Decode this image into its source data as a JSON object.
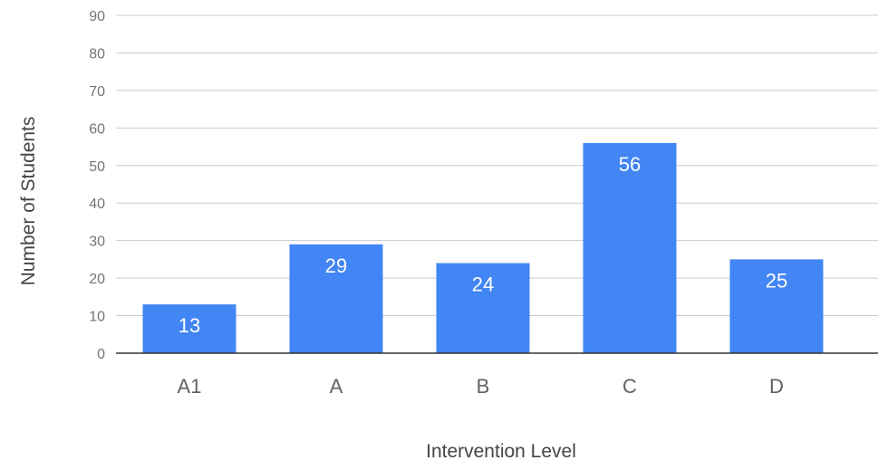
{
  "chart_data": {
    "type": "bar",
    "categories": [
      "A1",
      "A",
      "B",
      "C",
      "D"
    ],
    "values": [
      13,
      29,
      24,
      56,
      25
    ],
    "data_labels": [
      "13",
      "29",
      "24",
      "56",
      "25"
    ],
    "title": "",
    "xlabel": "Intervention Level",
    "ylabel": "Number of Students",
    "ylim": [
      0,
      90
    ],
    "yticks": [
      0,
      10,
      20,
      30,
      40,
      50,
      60,
      70,
      80,
      90
    ],
    "ytick_labels": [
      "0",
      "10",
      "20",
      "30",
      "40",
      "50",
      "60",
      "70",
      "80",
      "90"
    ],
    "grid": true,
    "legend": "none",
    "bar_color": "#4285f4"
  }
}
